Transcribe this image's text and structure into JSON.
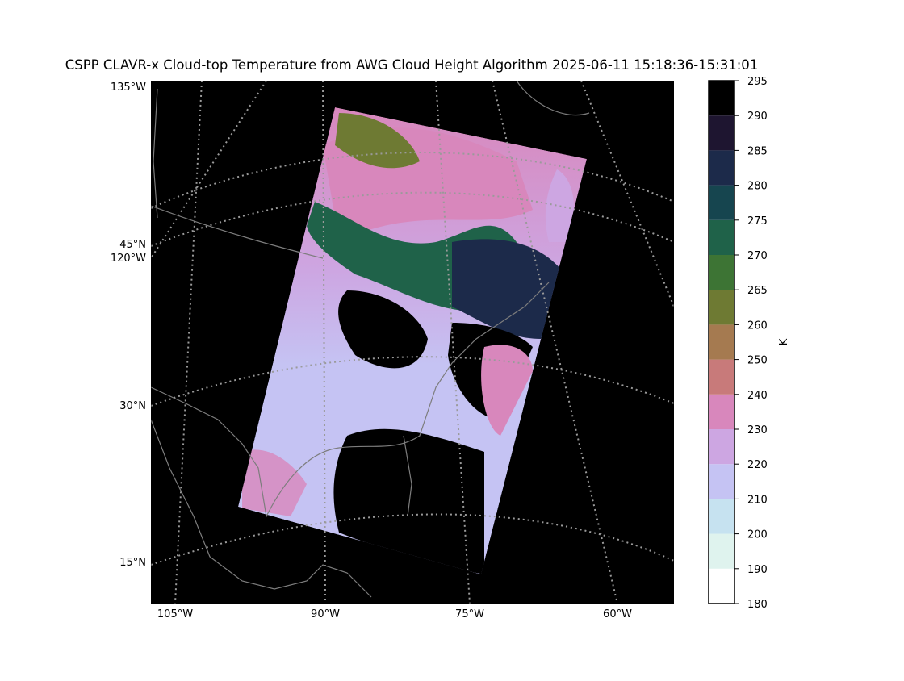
{
  "title": "CSPP CLAVR-x Cloud-top Temperature from AWG Cloud Height Algorithm 2025-06-11 15:18:36-15:31:01",
  "map": {
    "left_labels": [
      "135°W",
      "45°N",
      "120°W",
      "30°N",
      "15°N"
    ],
    "bottom_labels": [
      "105°W",
      "90°W",
      "75°W",
      "60°W"
    ]
  },
  "colorbar": {
    "label": "K",
    "boundaries": [
      180,
      190,
      200,
      210,
      220,
      230,
      240,
      250,
      260,
      265,
      270,
      275,
      280,
      285,
      290,
      295
    ],
    "colors": [
      "#ffffff",
      "#dff3ee",
      "#c6e2f0",
      "#c5c3f3",
      "#cda6e2",
      "#d887bc",
      "#c87a7a",
      "#a57a50",
      "#6e7a33",
      "#3d7434",
      "#1f6249",
      "#16454f",
      "#1c2a4a",
      "#1e1530",
      "#000000"
    ]
  }
}
